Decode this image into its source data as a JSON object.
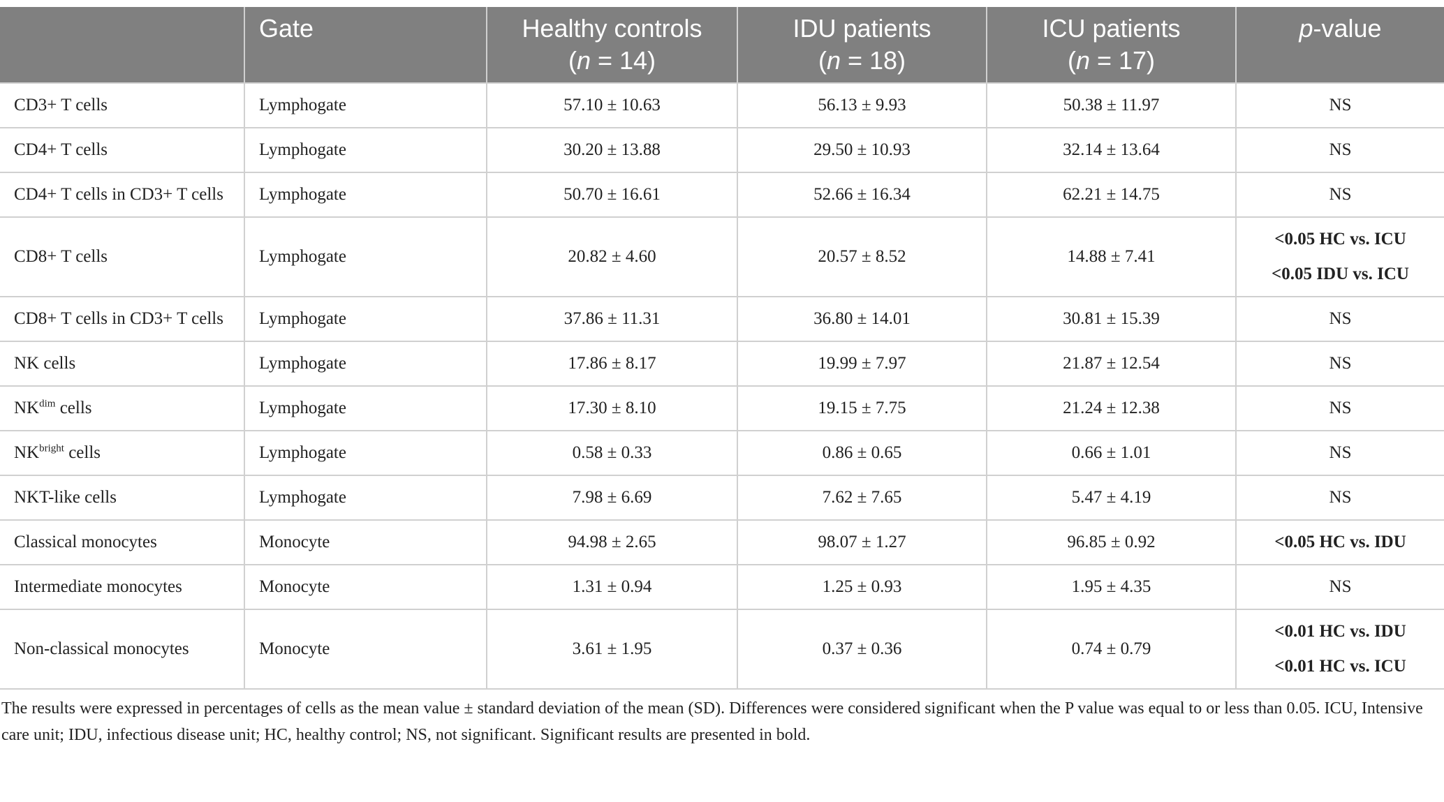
{
  "table": {
    "header": [
      {
        "label": "",
        "sub": []
      },
      {
        "label": "Gate",
        "sub": []
      },
      {
        "label": "Healthy controls",
        "sub": [
          "(",
          "n",
          " = 14)"
        ]
      },
      {
        "label": "IDU patients",
        "sub": [
          "(",
          "n",
          " = 18)"
        ]
      },
      {
        "label": "ICU patients",
        "sub": [
          "(",
          "n",
          " = 17)"
        ]
      },
      {
        "label": "",
        "sub": [],
        "italic_parts": [
          "p",
          "-value"
        ]
      }
    ],
    "rows": [
      {
        "name": [
          {
            "t": "CD3+ T cells"
          }
        ],
        "gate": "Lymphogate",
        "values": [
          "57.10 ± 10.63",
          "56.13 ± 9.93",
          "50.38 ± 11.97"
        ],
        "p": [
          "NS"
        ],
        "significant": false
      },
      {
        "name": [
          {
            "t": "CD4+ T cells"
          }
        ],
        "gate": "Lymphogate",
        "values": [
          "30.20 ± 13.88",
          "29.50 ± 10.93",
          "32.14 ± 13.64"
        ],
        "p": [
          "NS"
        ],
        "significant": false
      },
      {
        "name": [
          {
            "t": "CD4+ T cells in CD3+ T cells"
          }
        ],
        "gate": "Lymphogate",
        "values": [
          "50.70 ± 16.61",
          "52.66 ± 16.34",
          "62.21 ± 14.75"
        ],
        "p": [
          "NS"
        ],
        "significant": false
      },
      {
        "name": [
          {
            "t": "CD8+ T cells"
          }
        ],
        "gate": "Lymphogate",
        "values": [
          "20.82 ± 4.60",
          "20.57 ± 8.52",
          "14.88 ± 7.41"
        ],
        "p": [
          "<0.05 HC vs. ICU",
          "<0.05 IDU vs. ICU"
        ],
        "significant": true
      },
      {
        "name": [
          {
            "t": "CD8+ T cells in CD3+ T cells"
          }
        ],
        "gate": "Lymphogate",
        "values": [
          "37.86 ± 11.31",
          "36.80 ± 14.01",
          "30.81 ± 15.39"
        ],
        "p": [
          "NS"
        ],
        "significant": false
      },
      {
        "name": [
          {
            "t": "NK cells"
          }
        ],
        "gate": "Lymphogate",
        "values": [
          "17.86 ± 8.17",
          "19.99 ± 7.97",
          "21.87 ± 12.54"
        ],
        "p": [
          "NS"
        ],
        "significant": false
      },
      {
        "name": [
          {
            "t": "NK"
          },
          {
            "t": "dim",
            "sup": true
          },
          {
            "t": " cells"
          }
        ],
        "gate": "Lymphogate",
        "values": [
          "17.30 ± 8.10",
          "19.15 ± 7.75",
          "21.24 ± 12.38"
        ],
        "p": [
          "NS"
        ],
        "significant": false
      },
      {
        "name": [
          {
            "t": "NK"
          },
          {
            "t": "bright",
            "sup": true
          },
          {
            "t": " cells"
          }
        ],
        "gate": "Lymphogate",
        "values": [
          "0.58 ± 0.33",
          "0.86 ± 0.65",
          "0.66 ± 1.01"
        ],
        "p": [
          "NS"
        ],
        "significant": false
      },
      {
        "name": [
          {
            "t": "NKT-like cells"
          }
        ],
        "gate": "Lymphogate",
        "values": [
          "7.98 ± 6.69",
          "7.62 ± 7.65",
          "5.47 ± 4.19"
        ],
        "p": [
          "NS"
        ],
        "significant": false
      },
      {
        "name": [
          {
            "t": "Classical monocytes"
          }
        ],
        "gate": "Monocyte",
        "values": [
          "94.98 ± 2.65",
          "98.07 ± 1.27",
          "96.85 ± 0.92"
        ],
        "p": [
          "<0.05 HC vs. IDU"
        ],
        "significant": true
      },
      {
        "name": [
          {
            "t": "Intermediate monocytes"
          }
        ],
        "gate": "Monocyte",
        "values": [
          "1.31 ± 0.94",
          "1.25 ± 0.93",
          "1.95 ± 4.35"
        ],
        "p": [
          "NS"
        ],
        "significant": false
      },
      {
        "name": [
          {
            "t": "Non-classical monocytes"
          }
        ],
        "gate": "Monocyte",
        "values": [
          "3.61 ± 1.95",
          "0.37 ± 0.36",
          "0.74 ± 0.79"
        ],
        "p": [
          "<0.01 HC vs. IDU",
          "<0.01 HC vs. ICU"
        ],
        "significant": true
      }
    ]
  },
  "footnote": "The results were expressed in percentages of cells as the mean value ± standard deviation of the mean (SD). Differences were considered significant when the P value was equal to or less than 0.05. ICU, Intensive care unit; IDU, infectious disease unit; HC, healthy control; NS, not significant. Significant results are presented in bold."
}
